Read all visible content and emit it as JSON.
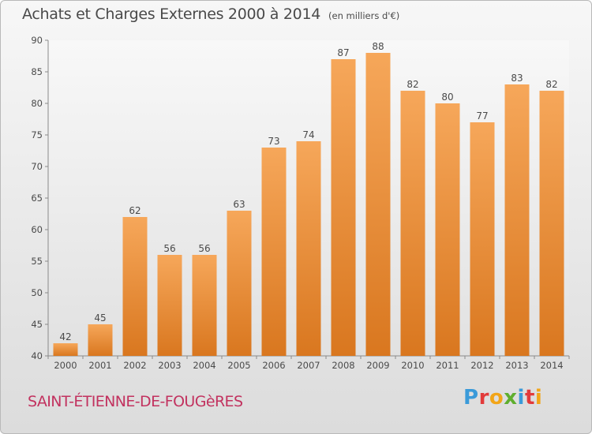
{
  "header": {
    "title": "Achats et Charges Externes 2000 à 2014",
    "unit": "(en milliers d'€)"
  },
  "footer": {
    "place": "SAINT-ÉTIENNE-DE-FOUGèRES",
    "brand_letters": [
      "P",
      "r",
      "o",
      "x",
      "i",
      "t",
      "i"
    ],
    "brand_colors": [
      "#3a9ad9",
      "#e23a3a",
      "#f2a518",
      "#5fae2e",
      "#3a9ad9",
      "#e23a3a",
      "#f2a518"
    ]
  },
  "colors": {
    "bar_top": "#f6a75a",
    "bar_bottom": "#d9771f",
    "text": "#4a4a4a"
  },
  "chart_data": {
    "type": "bar",
    "title": "Achats et Charges Externes 2000 à 2014",
    "subtitle": "(en milliers d'€)",
    "categories": [
      "2000",
      "2001",
      "2002",
      "2003",
      "2004",
      "2005",
      "2006",
      "2007",
      "2008",
      "2009",
      "2010",
      "2011",
      "2012",
      "2013",
      "2014"
    ],
    "values": [
      42,
      45,
      62,
      56,
      56,
      63,
      73,
      74,
      87,
      88,
      82,
      80,
      77,
      83,
      82
    ],
    "ylim": [
      40,
      90
    ],
    "yticks": [
      40,
      45,
      50,
      55,
      60,
      65,
      70,
      75,
      80,
      85,
      90
    ],
    "grid": false
  }
}
